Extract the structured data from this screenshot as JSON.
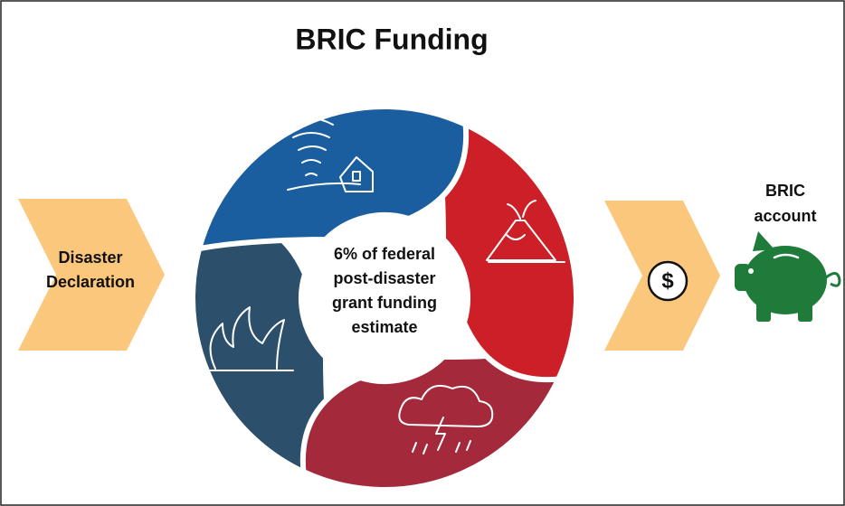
{
  "title": "BRIC Funding",
  "input": {
    "lines": [
      "Disaster",
      "Declaration"
    ]
  },
  "center": {
    "lines": [
      "6% of federal",
      "post-disaster",
      "grant funding",
      "estimate"
    ]
  },
  "money_symbol": "$",
  "output": {
    "lines": [
      "BRIC",
      "account"
    ]
  }
}
